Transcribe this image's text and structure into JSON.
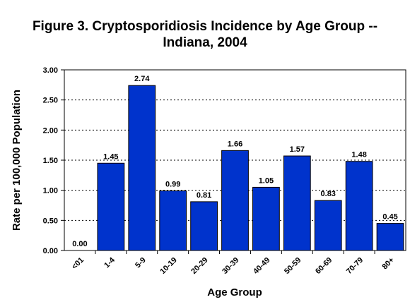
{
  "chart_data": {
    "type": "bar",
    "title_lines": [
      "Figure 3.  Cryptosporidiosis Incidence by Age Group --",
      "Indiana, 2004"
    ],
    "xlabel": "Age Group",
    "ylabel": "Rate per 100,000 Population",
    "categories": [
      "<01",
      "1-4",
      "5-9",
      "10-19",
      "20-29",
      "30-39",
      "40-49",
      "50-59",
      "60-69",
      "70-79",
      "80+"
    ],
    "values": [
      0.0,
      1.45,
      2.74,
      0.99,
      0.81,
      1.66,
      1.05,
      1.57,
      0.83,
      1.48,
      0.45
    ],
    "value_labels": [
      "0.00",
      "1.45",
      "2.74",
      "0.99",
      "0.81",
      "1.66",
      "1.05",
      "1.57",
      "0.83",
      "1.48",
      "0.45"
    ],
    "yticks": [
      "0.00",
      "0.50",
      "1.00",
      "1.50",
      "2.00",
      "2.50",
      "3.00"
    ],
    "ylim": [
      0,
      3
    ],
    "grid": true,
    "bar_color": "#0033cc"
  }
}
